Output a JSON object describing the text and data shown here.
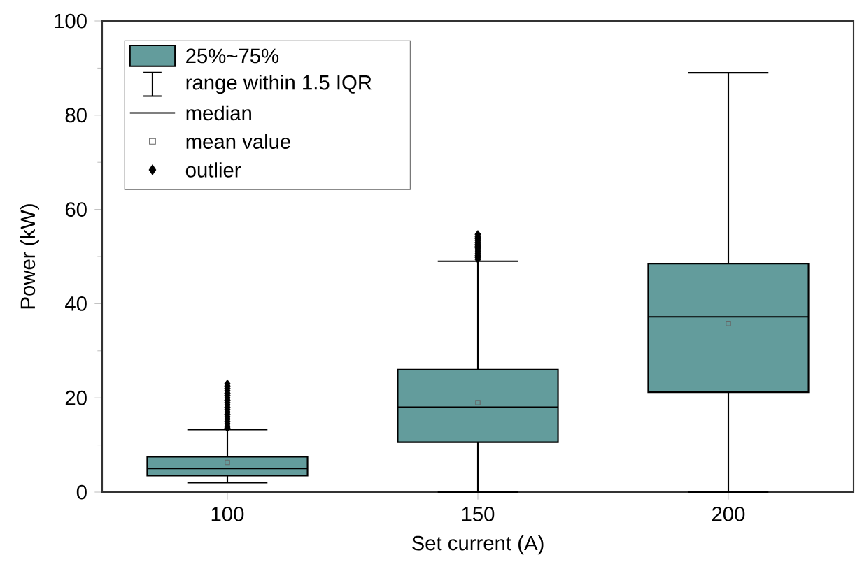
{
  "chart_data": {
    "type": "box",
    "xlabel": "Set current (A)",
    "ylabel": "Power (kW)",
    "categories": [
      "100",
      "150",
      "200"
    ],
    "series": [
      {
        "name": "25%~75%",
        "color": "#639c9c",
        "boxes": [
          {
            "low": 2,
            "q1": 3.5,
            "median": 5,
            "q3": 7.5,
            "high": 13.3,
            "mean": 6.3,
            "outliers": [
              13.6,
              14,
              14.5,
              15,
              15.5,
              16,
              16.5,
              17,
              17.5,
              18,
              18.5,
              19,
              19.5,
              20,
              20.5,
              21,
              21.5,
              22,
              22.5,
              23
            ]
          },
          {
            "low": 0,
            "q1": 10.6,
            "median": 18,
            "q3": 26,
            "high": 49,
            "mean": 19,
            "outliers": [
              49.4,
              49.8,
              50.2,
              50.6,
              51,
              51.4,
              51.8,
              52.2,
              52.6,
              53,
              53.4,
              53.8,
              54.2,
              54.7
            ]
          },
          {
            "low": 0,
            "q1": 21.2,
            "median": 37.2,
            "q3": 48.5,
            "high": 89,
            "mean": 35.8
          }
        ]
      }
    ],
    "ylim": [
      0,
      100
    ],
    "yticks": [
      0,
      20,
      40,
      60,
      80,
      100
    ],
    "marker": "diamond",
    "grid": false,
    "legend": "top left",
    "annotations": [
      "range within 1.5 IQR",
      "median",
      "mean value",
      "outlier"
    ]
  }
}
